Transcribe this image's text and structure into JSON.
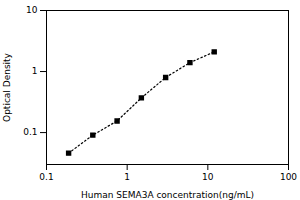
{
  "chart_data": {
    "type": "line",
    "x": [
      0.188,
      0.375,
      0.75,
      1.5,
      3.0,
      6.0,
      12.0
    ],
    "values": [
      0.046,
      0.091,
      0.155,
      0.37,
      0.8,
      1.4,
      2.1
    ],
    "xlabel": "Human SEMA3A concentration(ng/mL)",
    "ylabel": "Optical Density",
    "xlim": [
      0.1,
      100
    ],
    "ylim": [
      0.03,
      10
    ],
    "xticks": [
      0.1,
      1,
      10,
      100
    ],
    "yticks": [
      0.1,
      1,
      10
    ],
    "log": true,
    "color": "black",
    "marker": "square",
    "line_style": "dotted"
  }
}
